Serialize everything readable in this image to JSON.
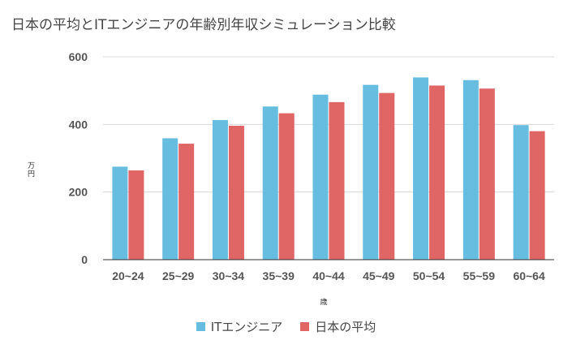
{
  "chart_data": {
    "type": "bar",
    "title": "日本の平均とITエンジニアの年齢別年収シミュレーション比較",
    "xlabel": "歳",
    "ylabel": "万円",
    "categories": [
      "20~24",
      "25~29",
      "30~34",
      "35~39",
      "40~44",
      "45~49",
      "50~54",
      "55~59",
      "60~64"
    ],
    "series": [
      {
        "name": "ITエンジニア",
        "color": "#67bde0",
        "values": [
          275,
          359,
          413,
          453,
          488,
          517,
          539,
          531,
          398
        ]
      },
      {
        "name": "日本の平均",
        "color": "#e06666",
        "values": [
          264,
          343,
          396,
          433,
          466,
          493,
          515,
          506,
          380
        ]
      }
    ],
    "ylim": [
      0,
      600
    ],
    "yticks": [
      0,
      200,
      400,
      600
    ],
    "grid": true,
    "legend_position": "bottom"
  }
}
